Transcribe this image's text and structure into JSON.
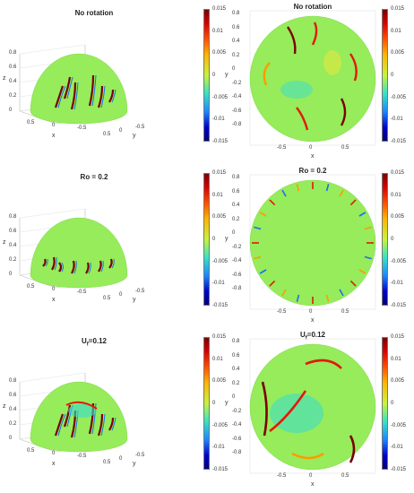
{
  "panels": [
    {
      "title": "No rotation",
      "view": "3d",
      "z_ticks": [
        "0.8",
        "0.6",
        "0.4",
        "0.2",
        "0"
      ],
      "x_ticks": [
        "0.5",
        "0",
        "-0.5"
      ],
      "y_ticks": [
        "0.5",
        "0",
        "-0.5"
      ],
      "xlabel": "x",
      "ylabel": "y",
      "zlabel": "z"
    },
    {
      "title": "No rotation",
      "view": "top",
      "y_ticks": [
        "0.8",
        "0.6",
        "0.4",
        "0.2",
        "0",
        "-0.2",
        "-0.4",
        "-0.6",
        "-0.8"
      ],
      "x_ticks": [
        "-0.5",
        "0",
        "0.5"
      ],
      "xlabel": "x",
      "ylabel": "y"
    },
    {
      "title": "Ro = 0.2",
      "view": "3d",
      "z_ticks": [
        "0.8",
        "0.6",
        "0.4",
        "0.2",
        "0"
      ],
      "x_ticks": [
        "0.5",
        "0",
        "-0.5"
      ],
      "y_ticks": [
        "0.5",
        "0",
        "-0.5"
      ],
      "xlabel": "x",
      "ylabel": "y",
      "zlabel": "z"
    },
    {
      "title": "Ro = 0.2",
      "view": "top",
      "y_ticks": [
        "0.8",
        "0.6",
        "0.4",
        "0.2",
        "0",
        "-0.2",
        "-0.4",
        "-0.6",
        "-0.8"
      ],
      "x_ticks": [
        "-0.5",
        "0",
        "0.5"
      ],
      "xlabel": "x",
      "ylabel": "y"
    },
    {
      "title": "U",
      "title_sub": "f",
      "title_rest": "=0.12",
      "view": "3d",
      "z_ticks": [
        "0.8",
        "0.6",
        "0.4",
        "0.2",
        "0"
      ],
      "x_ticks": [
        "0.5",
        "0",
        "-0.5"
      ],
      "y_ticks": [
        "0.5",
        "0",
        "-0.5"
      ],
      "xlabel": "x",
      "ylabel": "y",
      "zlabel": "z"
    },
    {
      "title": "U",
      "title_sub": "f",
      "title_rest": "=0.12",
      "view": "top",
      "y_ticks": [
        "0.8",
        "0.6",
        "0.4",
        "0.2",
        "0",
        "-0.2",
        "-0.4",
        "-0.6",
        "-0.8"
      ],
      "x_ticks": [
        "-0.5",
        "0",
        "0.5"
      ],
      "xlabel": "x",
      "ylabel": "y"
    }
  ],
  "colorbar": {
    "ticks": [
      "0.015",
      "0.01",
      "0.005",
      "0",
      "-0.005",
      "-0.01",
      "-0.015"
    ]
  },
  "colors": {
    "field": "#96ec5a",
    "dark_red": "#7a0000",
    "red": "#e01a0a",
    "orange": "#ff9b00",
    "yellow": "#f2e53a",
    "cyan": "#39dcd2",
    "blue": "#1e6ef0"
  }
}
